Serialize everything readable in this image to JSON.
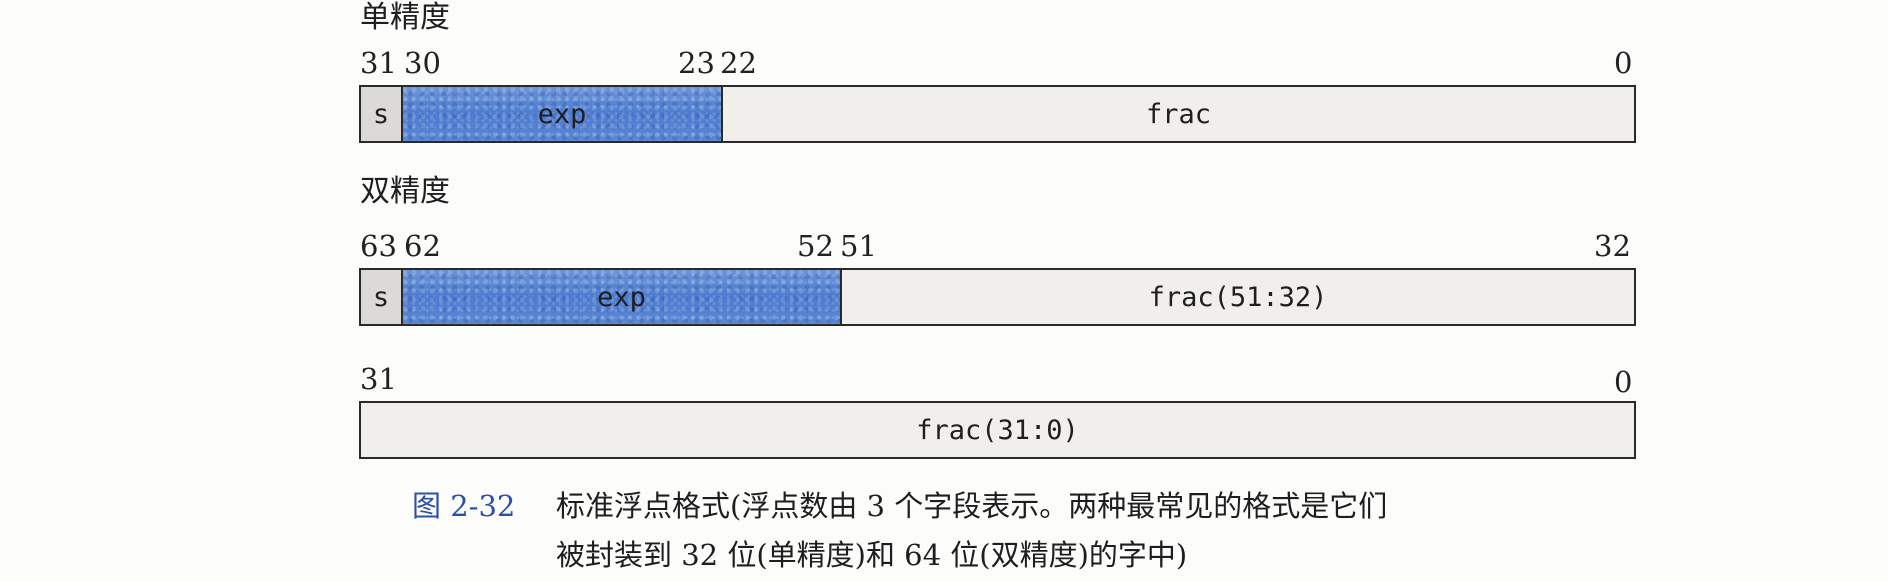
{
  "single": {
    "title": "单精度",
    "bits": [
      "31",
      "30",
      "23",
      "22",
      "0"
    ],
    "fields": {
      "sign": "s",
      "exp": "exp",
      "frac": "frac"
    }
  },
  "double": {
    "title": "双精度",
    "bits_upper": [
      "63",
      "62",
      "52",
      "51",
      "32"
    ],
    "fields_upper": {
      "sign": "s",
      "exp": "exp",
      "frac": "frac(51:32)"
    },
    "bits_lower": [
      "31",
      "0"
    ],
    "fields_lower": {
      "frac": "frac(31:0)"
    }
  },
  "caption": {
    "figure_number": "图 2-32",
    "line1": "标准浮点格式(浮点数由 3 个字段表示。两种最常见的格式是它们",
    "line2": "被封装到 32 位(单精度)和 64 位(双精度)的字中)"
  },
  "colors": {
    "exp_fill": "#4c7bd0",
    "sign_fill": "#dcdad9",
    "frac_fill": "#f1efec",
    "figure_number": "#2c4fa8"
  }
}
